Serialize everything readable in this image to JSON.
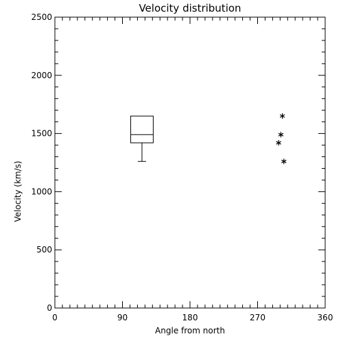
{
  "chart_data": {
    "type": "box",
    "title": "Velocity distribution",
    "xlabel": "Angle from north",
    "ylabel": "Velocity (km/s)",
    "xlim": [
      0,
      360
    ],
    "ylim": [
      0,
      2500
    ],
    "x_ticks": [
      0,
      90,
      180,
      270,
      360
    ],
    "y_ticks": [
      0,
      500,
      1000,
      1500,
      2000,
      2500
    ],
    "grid": false,
    "box": {
      "x_left": 101,
      "x_right": 131,
      "whisker_x": 116,
      "q1": 1420,
      "median": 1490,
      "q3": 1650,
      "whisker_low": 1260,
      "whisker_high": 1650
    },
    "points": [
      {
        "x": 303,
        "y": 1650
      },
      {
        "x": 301,
        "y": 1490
      },
      {
        "x": 298,
        "y": 1420
      },
      {
        "x": 305,
        "y": 1260
      }
    ],
    "colors": {
      "line": "#000000",
      "background": "#ffffff"
    }
  }
}
